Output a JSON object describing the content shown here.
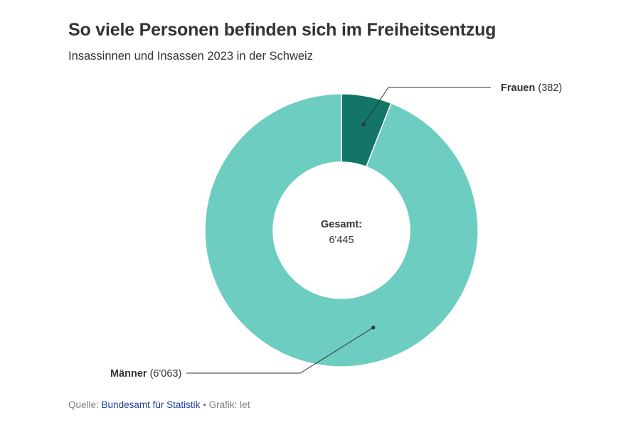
{
  "title": "So viele Personen befinden sich im Freiheitsentzug",
  "subtitle": "Insassinnen und Insassen 2023 in der Schweiz",
  "chart_data": {
    "type": "pie",
    "variant": "donut",
    "series": [
      {
        "name": "Frauen",
        "value": 382,
        "value_label": "(382)",
        "color": "#127565"
      },
      {
        "name": "Männer",
        "value": 6063,
        "value_label": "(6'063)",
        "color": "#6ccdc0"
      }
    ],
    "center_label": "Gesamt:",
    "center_value": "6'445"
  },
  "footer": {
    "source_prefix": "Quelle:",
    "source_link": "Bundesamt für Statistik",
    "bullet": "•",
    "credit": "Grafik: let"
  }
}
